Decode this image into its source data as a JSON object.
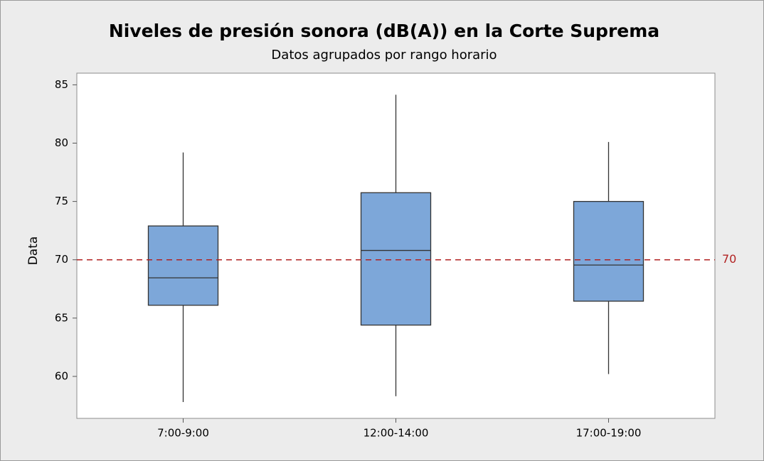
{
  "chart_data": {
    "type": "box",
    "title": "Niveles de presión sonora (dB(A))  en la Corte Suprema",
    "subtitle": "Datos agrupados por rango horario",
    "ylabel": "Data",
    "categories": [
      "7:00-9:00",
      "12:00-14:00",
      "17:00-19:00"
    ],
    "boxes": [
      {
        "min": 57.8,
        "q1": 66.1,
        "median": 68.45,
        "q3": 72.9,
        "max": 79.2
      },
      {
        "min": 58.3,
        "q1": 64.4,
        "median": 70.8,
        "q3": 75.75,
        "max": 84.15
      },
      {
        "min": 60.2,
        "q1": 66.45,
        "median": 69.55,
        "q3": 75.0,
        "max": 80.1
      }
    ],
    "color": "#7da7d9",
    "ylim": [
      56.4,
      86
    ],
    "yticks": [
      60,
      65,
      70,
      75,
      80,
      85
    ],
    "reference_line": 70,
    "reference_color": "#b22222"
  }
}
